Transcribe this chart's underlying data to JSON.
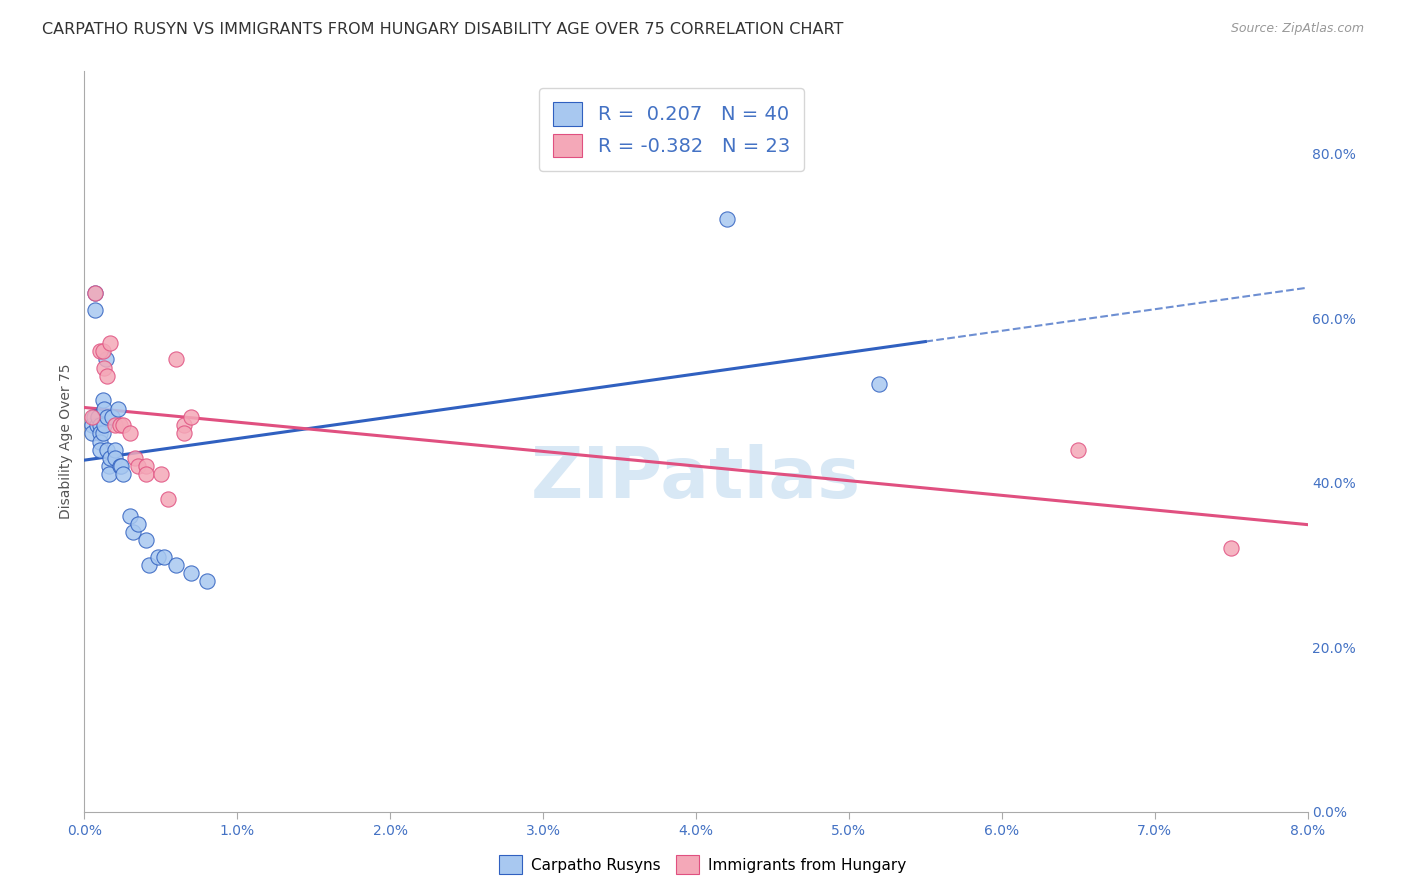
{
  "title": "CARPATHO RUSYN VS IMMIGRANTS FROM HUNGARY DISABILITY AGE OVER 75 CORRELATION CHART",
  "source_text": "Source: ZipAtlas.com",
  "ylabel": "Disability Age Over 75",
  "xmin": 0.0,
  "xmax": 0.08,
  "ymin": 0.0,
  "ymax": 0.9,
  "blue_color": "#A8C8F0",
  "pink_color": "#F4A8B8",
  "blue_line_color": "#3060C0",
  "pink_line_color": "#E05080",
  "legend_label_blue": "R =  0.207   N = 40",
  "legend_label_pink": "R = -0.382   N = 23",
  "legend_blue": "Carpatho Rusyns",
  "legend_pink": "Immigrants from Hungary",
  "blue_scatter_x": [
    0.0005,
    0.0005,
    0.0006,
    0.0007,
    0.0007,
    0.0008,
    0.0009,
    0.001,
    0.001,
    0.001,
    0.001,
    0.0012,
    0.0012,
    0.0013,
    0.0013,
    0.0014,
    0.0015,
    0.0015,
    0.0016,
    0.0016,
    0.0017,
    0.0018,
    0.002,
    0.002,
    0.0022,
    0.0023,
    0.0024,
    0.0025,
    0.003,
    0.0032,
    0.0035,
    0.004,
    0.0042,
    0.0048,
    0.0052,
    0.006,
    0.007,
    0.008,
    0.042,
    0.052
  ],
  "blue_scatter_y": [
    0.47,
    0.46,
    0.48,
    0.63,
    0.61,
    0.47,
    0.48,
    0.47,
    0.46,
    0.45,
    0.44,
    0.5,
    0.46,
    0.49,
    0.47,
    0.55,
    0.48,
    0.44,
    0.42,
    0.41,
    0.43,
    0.48,
    0.44,
    0.43,
    0.49,
    0.42,
    0.42,
    0.41,
    0.36,
    0.34,
    0.35,
    0.33,
    0.3,
    0.31,
    0.31,
    0.3,
    0.29,
    0.28,
    0.72,
    0.52
  ],
  "pink_scatter_x": [
    0.0005,
    0.0007,
    0.001,
    0.0012,
    0.0013,
    0.0015,
    0.0017,
    0.002,
    0.0023,
    0.0025,
    0.003,
    0.0033,
    0.0035,
    0.004,
    0.004,
    0.005,
    0.0055,
    0.006,
    0.0065,
    0.0065,
    0.007,
    0.065,
    0.075
  ],
  "pink_scatter_y": [
    0.48,
    0.63,
    0.56,
    0.56,
    0.54,
    0.53,
    0.57,
    0.47,
    0.47,
    0.47,
    0.46,
    0.43,
    0.42,
    0.42,
    0.41,
    0.41,
    0.38,
    0.55,
    0.47,
    0.46,
    0.48,
    0.44,
    0.32
  ],
  "xtick_values": [
    0.0,
    0.01,
    0.02,
    0.03,
    0.04,
    0.05,
    0.06,
    0.07,
    0.08
  ],
  "xtick_labels": [
    "0.0%",
    "1.0%",
    "2.0%",
    "3.0%",
    "4.0%",
    "5.0%",
    "6.0%",
    "7.0%",
    "8.0%"
  ],
  "ytick_right_values": [
    0.0,
    0.2,
    0.4,
    0.6,
    0.8
  ],
  "ytick_right_labels": [
    "0.0%",
    "20.0%",
    "40.0%",
    "60.0%",
    "80.0%"
  ],
  "background_color": "#FFFFFF",
  "grid_color": "#CCCCCC",
  "watermark_text": "ZIPatlas",
  "watermark_color": "#D8E8F5",
  "title_fontsize": 11.5,
  "tick_fontsize": 10,
  "axis_label_fontsize": 10,
  "blue_line_solid_end": 0.055,
  "blue_line_dashed_start": 0.055
}
